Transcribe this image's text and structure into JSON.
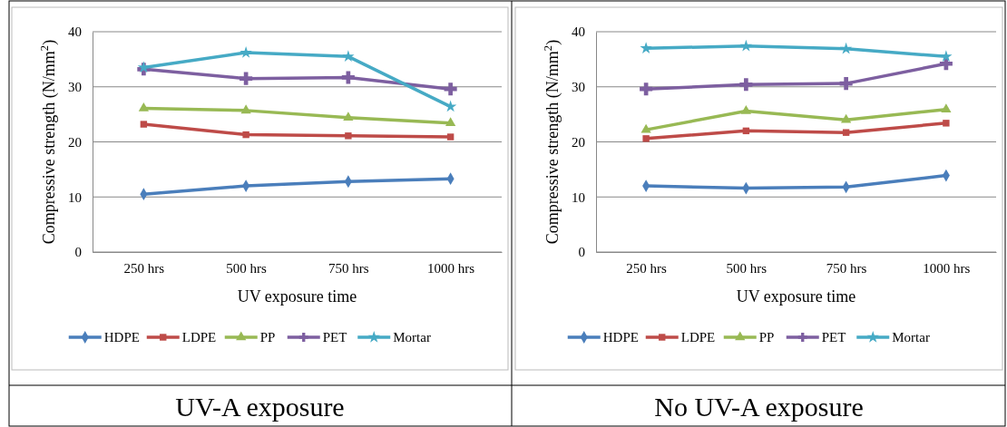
{
  "chart_data": [
    {
      "type": "line",
      "xlabel": "UV exposure time",
      "ylabel": "Compressive strength (N/mm$^{2}$)",
      "categories": [
        "250 hrs",
        "500 hrs",
        "750 hrs",
        "1000 hrs"
      ],
      "ylim": [
        0,
        40
      ],
      "yticks": [
        0,
        10,
        20,
        30,
        40
      ],
      "grid": "y",
      "legend": "bottom",
      "annotations": [
        "UV-A exposure"
      ],
      "series": [
        {
          "name": "HDPE",
          "color": "#4a7ebb",
          "marker": "diamond",
          "values": [
            10.5,
            12.0,
            12.8,
            13.3
          ]
        },
        {
          "name": "LDPE",
          "color": "#be4b48",
          "marker": "square",
          "values": [
            23.2,
            21.3,
            21.1,
            20.9
          ]
        },
        {
          "name": "PP",
          "color": "#98b954",
          "marker": "triangle",
          "values": [
            26.1,
            25.7,
            24.4,
            23.4
          ]
        },
        {
          "name": "PET",
          "color": "#7d5fa0",
          "marker": "cross",
          "values": [
            33.2,
            31.5,
            31.7,
            29.6
          ]
        },
        {
          "name": "Mortar",
          "color": "#46aac5",
          "marker": "star",
          "values": [
            33.5,
            36.2,
            35.5,
            26.4
          ]
        }
      ]
    },
    {
      "type": "line",
      "xlabel": "UV exposure time",
      "ylabel": "Compressive strength (N/mm$^{2}$)",
      "categories": [
        "250 hrs",
        "500 hrs",
        "750 hrs",
        "1000 hrs"
      ],
      "ylim": [
        0,
        40
      ],
      "yticks": [
        0,
        10,
        20,
        30,
        40
      ],
      "grid": "y",
      "legend": "bottom",
      "annotations": [
        "No UV-A exposure"
      ],
      "series": [
        {
          "name": "HDPE",
          "color": "#4a7ebb",
          "marker": "diamond",
          "values": [
            12.0,
            11.6,
            11.8,
            13.9
          ]
        },
        {
          "name": "LDPE",
          "color": "#be4b48",
          "marker": "square",
          "values": [
            20.6,
            22.0,
            21.7,
            23.4
          ]
        },
        {
          "name": "PP",
          "color": "#98b954",
          "marker": "triangle",
          "values": [
            22.2,
            25.6,
            24.0,
            25.9
          ]
        },
        {
          "name": "PET",
          "color": "#7d5fa0",
          "marker": "cross",
          "values": [
            29.6,
            30.4,
            30.6,
            34.2
          ]
        },
        {
          "name": "Mortar",
          "color": "#46aac5",
          "marker": "star",
          "values": [
            37.0,
            37.4,
            36.9,
            35.5
          ]
        }
      ]
    }
  ]
}
